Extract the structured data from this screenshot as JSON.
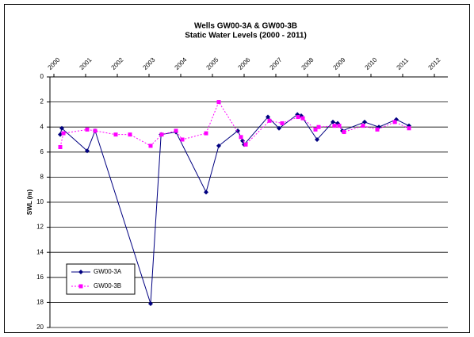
{
  "chart_data": {
    "type": "line",
    "title": "Wells GW00-3A & GW00-3B",
    "subtitle": "Static Water Levels (2000 - 2011)",
    "y_label": "SWL (m)",
    "xlim": [
      1999.875,
      2012.425
    ],
    "xticks": [
      2000,
      2001,
      2002,
      2003,
      2004,
      2005,
      2006,
      2007,
      2008,
      2009,
      2010,
      2011,
      2012
    ],
    "x_axis_position": "top",
    "ylim": [
      0,
      20
    ],
    "yticks": [
      0,
      2,
      4,
      6,
      8,
      10,
      12,
      14,
      16,
      18,
      20
    ],
    "y_inverted": true,
    "grid": true,
    "legend": "lower left",
    "series": [
      {
        "name": "GW00-3A",
        "color": "#000080",
        "marker": "diamond",
        "dash": false,
        "x": [
          2000.2,
          2000.25,
          2001.05,
          2001.3,
          2003.05,
          2003.38,
          2003.85,
          2004.8,
          2005.2,
          2005.8,
          2005.95,
          2006.0,
          2006.75,
          2007.1,
          2007.68,
          2007.8,
          2008.3,
          2008.8,
          2008.95,
          2009.1,
          2009.8,
          2010.25,
          2010.8,
          2011.2
        ],
        "values": [
          4.6,
          4.1,
          5.9,
          4.3,
          18.1,
          4.6,
          4.4,
          9.2,
          5.5,
          4.3,
          5.1,
          5.4,
          3.2,
          4.1,
          3.0,
          3.1,
          5.0,
          3.6,
          3.7,
          4.3,
          3.6,
          4.0,
          3.4,
          3.9
        ]
      },
      {
        "name": "GW00-3B",
        "color": "#ff00ff",
        "marker": "square",
        "dash": true,
        "x": [
          2000.2,
          2000.3,
          2001.05,
          2001.3,
          2001.95,
          2002.4,
          2003.05,
          2003.4,
          2003.85,
          2004.05,
          2004.8,
          2005.2,
          2005.9,
          2006.05,
          2006.8,
          2007.2,
          2007.7,
          2007.85,
          2008.25,
          2008.35,
          2008.85,
          2009.0,
          2009.15,
          2009.75,
          2010.2,
          2010.75,
          2011.2
        ],
        "values": [
          5.6,
          4.5,
          4.2,
          4.3,
          4.6,
          4.6,
          5.5,
          4.6,
          4.3,
          5.0,
          4.5,
          2.0,
          4.8,
          5.4,
          3.5,
          3.7,
          3.2,
          3.3,
          4.2,
          4.0,
          3.9,
          3.9,
          4.4,
          3.9,
          4.2,
          3.6,
          4.1
        ]
      }
    ]
  }
}
